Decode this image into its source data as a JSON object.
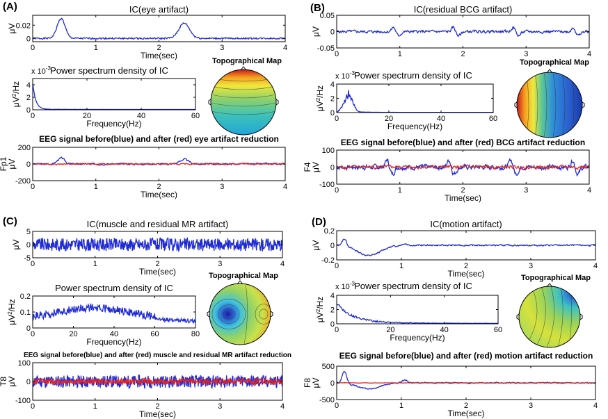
{
  "colors": {
    "blue": "#1f2bd6",
    "red": "#e8231b",
    "axis": "#000000"
  },
  "chart_data": [
    {
      "id": "A1",
      "panel": "(A)",
      "type": "line",
      "title": "IC(eye artifact)",
      "xlabel": "Time(sec)",
      "ylabel": "μV",
      "xlim": [
        0,
        4
      ],
      "ylim": [
        -0.005,
        0.035
      ],
      "xticks": [
        0,
        1,
        2,
        3,
        4
      ],
      "yticks": [
        0,
        0.02
      ],
      "ytick_labels": [
        "0",
        "0.02"
      ],
      "series": [
        {
          "name": "IC",
          "color": "blue",
          "gen": {
            "kind": "noise",
            "n": 400,
            "seed": 1,
            "noise": 0.0012,
            "base": 0.0,
            "bumps": [
              [
                0.45,
                0.03,
                0.09
              ],
              [
                2.4,
                0.023,
                0.12
              ]
            ]
          }
        }
      ]
    },
    {
      "id": "A2",
      "panel": "(A)",
      "type": "line",
      "title": "Power spectrum density of IC",
      "multiplier": "x 10",
      "multiplier_exp": "-3",
      "xlabel": "Frequency(Hz)",
      "ylabel": "μV2/Hz",
      "xlim": [
        0,
        60
      ],
      "ylim": [
        0,
        5
      ],
      "xticks": [
        0,
        20,
        40,
        60
      ],
      "yticks": [
        0,
        2,
        4
      ],
      "series": [
        {
          "name": "PSD",
          "color": "blue",
          "gen": {
            "kind": "decay",
            "n": 240,
            "seed": 2,
            "peak": 4.2,
            "rate": 0.9,
            "noise": 0.06,
            "tail": 0.05
          }
        }
      ]
    },
    {
      "id": "A3",
      "panel": "(A)",
      "type": "line",
      "title": "EEG signal before(blue) and after (red) eye artifact reduction",
      "xlabel": "Time(sec)",
      "ylabel": "μV",
      "channel": "Fp1",
      "xlim": [
        0,
        4
      ],
      "ylim": [
        -200,
        200
      ],
      "xticks": [
        0,
        1,
        2,
        3,
        4
      ],
      "yticks": [
        -200,
        0,
        200
      ],
      "series": [
        {
          "name": "before",
          "color": "blue",
          "gen": {
            "kind": "noise",
            "n": 500,
            "seed": 3,
            "noise": 12,
            "base": 0,
            "smooth": 0.6,
            "bumps": [
              [
                0.45,
                70,
                0.08
              ],
              [
                2.4,
                55,
                0.1
              ]
            ]
          }
        },
        {
          "name": "after",
          "color": "red",
          "gen": {
            "kind": "noise",
            "n": 500,
            "seed": 4,
            "noise": 10,
            "base": 0,
            "smooth": 0.6,
            "bumps": []
          }
        }
      ]
    },
    {
      "id": "B1",
      "panel": "(B)",
      "type": "line",
      "title": "IC(residual BCG artifact)",
      "xlabel": "",
      "ylabel": "μV",
      "xlim": [
        0,
        4
      ],
      "ylim": [
        -0.05,
        0.05
      ],
      "xticks": [
        0,
        1,
        2,
        3,
        4
      ],
      "yticks": [
        -0.05,
        0,
        0.05
      ],
      "ytick_labels": [
        "-0.05",
        "0",
        "0.05"
      ],
      "series": [
        {
          "name": "IC",
          "color": "blue",
          "gen": {
            "kind": "beats",
            "n": 500,
            "seed": 5,
            "noise": 0.004,
            "amp": 0.014,
            "period": 0.95,
            "start": 0.9
          }
        }
      ]
    },
    {
      "id": "B2",
      "panel": "(B)",
      "type": "line",
      "title": "Power spectrum density of IC",
      "multiplier": "x 10",
      "multiplier_exp": "-3",
      "xlabel": "Frequency(Hz)",
      "ylabel": "μV2/Hz",
      "xlim": [
        0,
        60
      ],
      "ylim": [
        0,
        4
      ],
      "xticks": [
        0,
        20,
        40,
        60
      ],
      "yticks": [
        0,
        2,
        4
      ],
      "series": [
        {
          "name": "PSD",
          "color": "blue",
          "gen": {
            "kind": "lowpeak",
            "n": 240,
            "seed": 6,
            "peak": 3.0,
            "center": 4.5,
            "width": 2.2,
            "noise": 0.5,
            "tail": 0.04
          }
        }
      ]
    },
    {
      "id": "B3",
      "panel": "(B)",
      "type": "line",
      "title": "EEG signal before(blue) and after (red) BCG artifact reduction",
      "xlabel": "Time(sec)",
      "ylabel": "μV",
      "channel": "F4",
      "xlim": [
        0,
        4
      ],
      "ylim": [
        -100,
        100
      ],
      "xticks": [
        0,
        1,
        2,
        3,
        4
      ],
      "yticks": [
        -100,
        0,
        100
      ],
      "series": [
        {
          "name": "before",
          "color": "blue",
          "gen": {
            "kind": "beats",
            "n": 500,
            "seed": 7,
            "noise": 14,
            "amp": 45,
            "period": 0.98,
            "start": 0.8
          }
        },
        {
          "name": "after",
          "color": "red",
          "gen": {
            "kind": "noise",
            "n": 500,
            "seed": 8,
            "noise": 11,
            "base": 0,
            "smooth": 0.6,
            "bumps": []
          }
        }
      ]
    },
    {
      "id": "C1",
      "panel": "(C)",
      "type": "line",
      "title": "IC(muscle and residual MR artifact)",
      "xlabel": "Time(sec)",
      "ylabel": "μV",
      "xlim": [
        0,
        4
      ],
      "ylim": [
        -5,
        5
      ],
      "xticks": [
        0,
        1,
        2,
        3,
        4
      ],
      "yticks": [
        -5,
        0,
        5
      ],
      "series": [
        {
          "name": "IC",
          "color": "blue",
          "gen": {
            "kind": "noise",
            "n": 600,
            "seed": 9,
            "noise": 1.6,
            "base": 0,
            "smooth": 0.05,
            "bumps": []
          }
        }
      ]
    },
    {
      "id": "C2",
      "panel": "(C)",
      "type": "line",
      "title": "Power spectrum density of IC",
      "xlabel": "Frequency(Hz)",
      "ylabel": "μV2/Hz",
      "xlim": [
        0,
        80
      ],
      "ylim": [
        0,
        0.2
      ],
      "xticks": [
        0,
        20,
        40,
        60,
        80
      ],
      "yticks": [
        0,
        0.1,
        0.2
      ],
      "ytick_labels": [
        "0",
        "0.1",
        "0.2"
      ],
      "series": [
        {
          "name": "PSD",
          "color": "blue",
          "gen": {
            "kind": "broad",
            "n": 320,
            "seed": 10,
            "noise": 0.05,
            "base": 0.03,
            "hump": 0.07,
            "center": 30,
            "width": 25
          }
        }
      ]
    },
    {
      "id": "C3",
      "panel": "(C)",
      "type": "line",
      "title": "EEG signal before(blue) and after (red) muscle and residual MR artifact reduction",
      "xlabel": "Time(sec)",
      "ylabel": "μV",
      "channel": "T8",
      "xlim": [
        0,
        4
      ],
      "ylim": [
        -100,
        100
      ],
      "xticks": [
        0,
        1,
        2,
        3,
        4
      ],
      "yticks": [
        -100,
        0,
        100
      ],
      "series": [
        {
          "name": "before",
          "color": "blue",
          "gen": {
            "kind": "noise",
            "n": 600,
            "seed": 11,
            "noise": 22,
            "base": 0,
            "smooth": 0.05,
            "bumps": []
          }
        },
        {
          "name": "after",
          "color": "red",
          "gen": {
            "kind": "noise",
            "n": 600,
            "seed": 12,
            "noise": 12,
            "base": 0,
            "smooth": 0.2,
            "bumps": []
          }
        }
      ]
    },
    {
      "id": "D1",
      "panel": "(D)",
      "type": "line",
      "title": "IC(motion artifact)",
      "xlabel": "Time(sec)",
      "ylabel": "μV",
      "xlim": [
        0,
        4
      ],
      "ylim": [
        -0.2,
        0.2
      ],
      "xticks": [
        0,
        1,
        2,
        3,
        4
      ],
      "yticks": [
        -0.2,
        0,
        0.2
      ],
      "ytick_labels": [
        "-0.2",
        "0",
        "0.2"
      ],
      "series": [
        {
          "name": "IC",
          "color": "blue",
          "gen": {
            "kind": "motion",
            "n": 500,
            "seed": 13,
            "noise": 0.008,
            "dip": -0.14,
            "rise": 0.09
          }
        }
      ]
    },
    {
      "id": "D2",
      "panel": "(D)",
      "type": "line",
      "title": "Power spectrum density of IC",
      "multiplier": "x 10",
      "multiplier_exp": "-3",
      "xlabel": "Frequency(Hz)",
      "ylabel": "μV2/Hz",
      "xlim": [
        0,
        60
      ],
      "ylim": [
        0,
        4
      ],
      "xticks": [
        0,
        20,
        40,
        60
      ],
      "yticks": [
        0,
        2,
        4
      ],
      "series": [
        {
          "name": "PSD",
          "color": "blue",
          "gen": {
            "kind": "decay",
            "n": 240,
            "seed": 14,
            "peak": 2.6,
            "rate": 0.18,
            "noise": 0.45,
            "tail": 0.05
          }
        }
      ]
    },
    {
      "id": "D3",
      "panel": "(D)",
      "type": "line",
      "title": "EEG signal before(blue) and after (red) motion artifact reduction",
      "xlabel": "Time(sec)",
      "ylabel": "μV",
      "channel": "F8",
      "xlim": [
        0,
        4
      ],
      "ylim": [
        -500,
        500
      ],
      "xticks": [
        0,
        1,
        2,
        3,
        4
      ],
      "yticks": [
        -500,
        0,
        500
      ],
      "series": [
        {
          "name": "before",
          "color": "blue",
          "gen": {
            "kind": "motion",
            "n": 500,
            "seed": 15,
            "noise": 14,
            "dip": -180,
            "rise": 350
          }
        },
        {
          "name": "after",
          "color": "red",
          "gen": {
            "kind": "noise",
            "n": 500,
            "seed": 16,
            "noise": 8,
            "base": 0,
            "smooth": 0.7,
            "bumps": []
          }
        }
      ]
    }
  ],
  "topomaps": [
    {
      "id": "topoA",
      "panel": "(A)",
      "label": "Topographical Map",
      "pattern": "frontal"
    },
    {
      "id": "topoB",
      "panel": "(B)",
      "label": "Topographical Map",
      "pattern": "lateral"
    },
    {
      "id": "topoC",
      "panel": "(C)",
      "label": "Topographical Map",
      "pattern": "temporal"
    },
    {
      "id": "topoD",
      "panel": "(D)",
      "label": "Topographical Map",
      "pattern": "rightfrontal"
    }
  ]
}
